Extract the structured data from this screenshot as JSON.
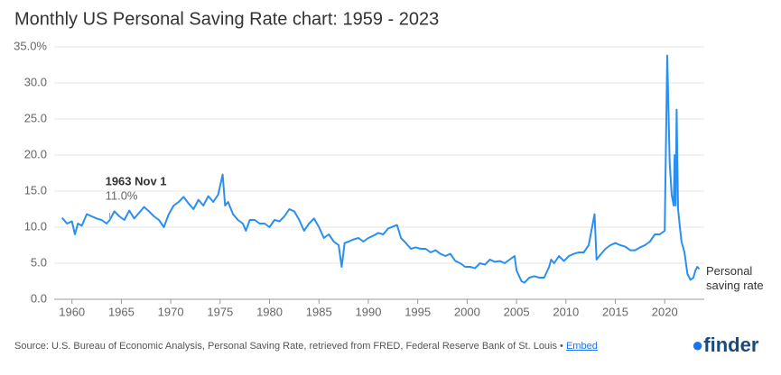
{
  "chart_data": {
    "type": "line",
    "title": "Monthly US Personal Saving Rate chart: 1959 - 2023",
    "source": "Source: U.S. Bureau of Economic Analysis, Personal Saving Rate, retrieved from FRED, Federal Reserve Bank of St. Louis",
    "embed": "Embed",
    "logo": "finder",
    "annotation": {
      "label": "1963 Nov 1",
      "x": 1963.83,
      "value": 11.0,
      "value_label": "11.0%"
    },
    "x": [
      1959.0,
      1959.5,
      1960.0,
      1960.3,
      1960.6,
      1961.0,
      1961.5,
      1962.0,
      1962.5,
      1963.0,
      1963.5,
      1963.83,
      1964.3,
      1964.8,
      1965.3,
      1965.8,
      1966.3,
      1966.8,
      1967.3,
      1967.8,
      1968.3,
      1968.8,
      1969.3,
      1969.8,
      1970.3,
      1970.8,
      1971.3,
      1971.8,
      1972.3,
      1972.8,
      1973.3,
      1973.8,
      1974.3,
      1974.8,
      1975.25,
      1975.5,
      1975.8,
      1976.3,
      1976.8,
      1977.3,
      1977.6,
      1978.0,
      1978.5,
      1979.0,
      1979.5,
      1980.0,
      1980.5,
      1981.0,
      1981.5,
      1982.0,
      1982.5,
      1983.0,
      1983.5,
      1984.0,
      1984.5,
      1985.0,
      1985.5,
      1986.0,
      1986.5,
      1987.0,
      1987.3,
      1987.6,
      1988.0,
      1988.5,
      1989.0,
      1989.5,
      1990.0,
      1990.5,
      1991.0,
      1991.5,
      1992.0,
      1992.9,
      1993.3,
      1993.8,
      1994.3,
      1994.8,
      1995.3,
      1995.8,
      1996.3,
      1996.8,
      1997.3,
      1997.8,
      1998.3,
      1998.8,
      1999.3,
      1999.8,
      2000.3,
      2000.8,
      2001.3,
      2001.8,
      2002.3,
      2002.8,
      2003.3,
      2003.8,
      2004.3,
      2004.8,
      2005.0,
      2005.5,
      2005.8,
      2006.3,
      2006.8,
      2007.3,
      2007.8,
      2008.3,
      2008.5,
      2008.8,
      2009.3,
      2009.8,
      2010.3,
      2010.8,
      2011.3,
      2011.8,
      2012.3,
      2012.9,
      2013.1,
      2013.5,
      2014.0,
      2014.5,
      2015.0,
      2015.5,
      2016.0,
      2016.5,
      2017.0,
      2017.5,
      2018.0,
      2018.5,
      2019.0,
      2019.5,
      2020.0,
      2020.25,
      2020.5,
      2020.7,
      2020.9,
      2021.0,
      2021.1,
      2021.2,
      2021.35,
      2021.5,
      2021.7,
      2022.0,
      2022.3,
      2022.6,
      2022.9,
      2023.1,
      2023.3,
      2023.5
    ],
    "series": [
      {
        "name": "Personal saving rate",
        "color": "#2b8ff0",
        "values": [
          11.3,
          10.5,
          10.8,
          9.0,
          10.5,
          10.2,
          11.8,
          11.5,
          11.2,
          11.0,
          10.5,
          11.0,
          12.2,
          11.5,
          11.0,
          12.3,
          11.2,
          12.0,
          12.8,
          12.2,
          11.5,
          11.0,
          10.0,
          11.8,
          13.0,
          13.5,
          14.2,
          13.3,
          12.5,
          13.8,
          13.0,
          14.3,
          13.5,
          14.5,
          17.3,
          13.0,
          13.5,
          11.8,
          11.0,
          10.5,
          9.5,
          11.0,
          11.0,
          10.5,
          10.5,
          10.0,
          11.0,
          10.8,
          11.5,
          12.5,
          12.2,
          11.0,
          9.5,
          10.5,
          11.2,
          10.0,
          8.5,
          9.0,
          8.0,
          7.5,
          4.5,
          7.8,
          8.0,
          8.3,
          8.5,
          8.0,
          8.5,
          8.8,
          9.2,
          9.0,
          9.8,
          10.3,
          8.5,
          7.8,
          7.0,
          7.2,
          7.0,
          7.0,
          6.5,
          6.8,
          6.3,
          6.0,
          6.3,
          5.3,
          5.0,
          4.5,
          4.5,
          4.3,
          5.0,
          4.8,
          5.5,
          5.2,
          5.3,
          5.0,
          5.5,
          6.0,
          4.0,
          2.5,
          2.3,
          3.0,
          3.2,
          3.0,
          3.0,
          4.5,
          5.5,
          5.0,
          6.0,
          5.3,
          6.0,
          6.3,
          6.5,
          6.5,
          7.5,
          11.8,
          5.5,
          6.2,
          7.0,
          7.5,
          7.8,
          7.5,
          7.3,
          6.8,
          6.8,
          7.2,
          7.5,
          8.0,
          9.0,
          9.0,
          9.5,
          33.8,
          19.0,
          14.5,
          13.0,
          20.0,
          13.0,
          26.3,
          12.5,
          10.5,
          8.0,
          6.5,
          3.5,
          2.7,
          3.0,
          4.0,
          4.5,
          4.2
        ]
      }
    ],
    "xlim": [
      1958.2,
      2024
    ],
    "xticks": [
      1960,
      1965,
      1970,
      1975,
      1980,
      1985,
      1990,
      1995,
      2000,
      2005,
      2010,
      2015,
      2020
    ],
    "ylim": [
      0,
      35
    ],
    "yticks": [
      {
        "value": 0,
        "label": "0.0"
      },
      {
        "value": 5,
        "label": "5.0"
      },
      {
        "value": 10,
        "label": "10.0"
      },
      {
        "value": 15,
        "label": "15.0"
      },
      {
        "value": 20,
        "label": "20.0"
      },
      {
        "value": 25,
        "label": "25.0"
      },
      {
        "value": 30,
        "label": "30.0"
      },
      {
        "value": 35,
        "label": "35.0%"
      }
    ],
    "grid": true
  }
}
